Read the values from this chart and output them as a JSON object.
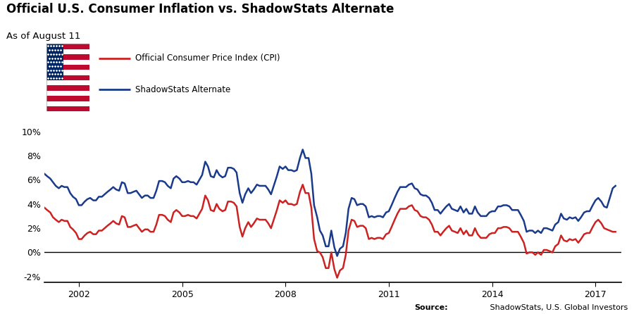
{
  "title": "Official U.S. Consumer Inflation vs. ShadowStats Alternate",
  "subtitle": "As of August 11",
  "source_label": "Source:",
  "source_text": " ShadowStats, U.S. Global Investors",
  "cpi_label": "Official Consumer Price Index (CPI)",
  "shadow_label": "ShadowStats Alternate",
  "cpi_color": "#cc2222",
  "shadow_color": "#1a3a8c",
  "line_width": 1.8,
  "ylim": [
    -2.5,
    11
  ],
  "yticks": [
    -2,
    0,
    2,
    4,
    6,
    8,
    10
  ],
  "xlim": [
    2001.0,
    2017.75
  ],
  "xticks": [
    2002,
    2005,
    2008,
    2011,
    2014,
    2017
  ],
  "background_color": "#ffffff",
  "cpi_data": {
    "dates": [
      2001.0,
      2001.08,
      2001.17,
      2001.25,
      2001.33,
      2001.42,
      2001.5,
      2001.58,
      2001.67,
      2001.75,
      2001.83,
      2001.92,
      2002.0,
      2002.08,
      2002.17,
      2002.25,
      2002.33,
      2002.42,
      2002.5,
      2002.58,
      2002.67,
      2002.75,
      2002.83,
      2002.92,
      2003.0,
      2003.08,
      2003.17,
      2003.25,
      2003.33,
      2003.42,
      2003.5,
      2003.58,
      2003.67,
      2003.75,
      2003.83,
      2003.92,
      2004.0,
      2004.08,
      2004.17,
      2004.25,
      2004.33,
      2004.42,
      2004.5,
      2004.58,
      2004.67,
      2004.75,
      2004.83,
      2004.92,
      2005.0,
      2005.08,
      2005.17,
      2005.25,
      2005.33,
      2005.42,
      2005.5,
      2005.58,
      2005.67,
      2005.75,
      2005.83,
      2005.92,
      2006.0,
      2006.08,
      2006.17,
      2006.25,
      2006.33,
      2006.42,
      2006.5,
      2006.58,
      2006.67,
      2006.75,
      2006.83,
      2006.92,
      2007.0,
      2007.08,
      2007.17,
      2007.25,
      2007.33,
      2007.42,
      2007.5,
      2007.58,
      2007.67,
      2007.75,
      2007.83,
      2007.92,
      2008.0,
      2008.08,
      2008.17,
      2008.25,
      2008.33,
      2008.42,
      2008.5,
      2008.58,
      2008.67,
      2008.75,
      2008.83,
      2008.92,
      2009.0,
      2009.08,
      2009.17,
      2009.25,
      2009.33,
      2009.42,
      2009.5,
      2009.58,
      2009.67,
      2009.75,
      2009.83,
      2009.92,
      2010.0,
      2010.08,
      2010.17,
      2010.25,
      2010.33,
      2010.42,
      2010.5,
      2010.58,
      2010.67,
      2010.75,
      2010.83,
      2010.92,
      2011.0,
      2011.08,
      2011.17,
      2011.25,
      2011.33,
      2011.42,
      2011.5,
      2011.58,
      2011.67,
      2011.75,
      2011.83,
      2011.92,
      2012.0,
      2012.08,
      2012.17,
      2012.25,
      2012.33,
      2012.42,
      2012.5,
      2012.58,
      2012.67,
      2012.75,
      2012.83,
      2012.92,
      2013.0,
      2013.08,
      2013.17,
      2013.25,
      2013.33,
      2013.42,
      2013.5,
      2013.58,
      2013.67,
      2013.75,
      2013.83,
      2013.92,
      2014.0,
      2014.08,
      2014.17,
      2014.25,
      2014.33,
      2014.42,
      2014.5,
      2014.58,
      2014.67,
      2014.75,
      2014.83,
      2014.92,
      2015.0,
      2015.08,
      2015.17,
      2015.25,
      2015.33,
      2015.42,
      2015.5,
      2015.58,
      2015.67,
      2015.75,
      2015.83,
      2015.92,
      2016.0,
      2016.08,
      2016.17,
      2016.25,
      2016.33,
      2016.42,
      2016.5,
      2016.58,
      2016.67,
      2016.75,
      2016.83,
      2016.92,
      2017.0,
      2017.08,
      2017.17,
      2017.25,
      2017.33,
      2017.5,
      2017.58
    ],
    "values": [
      3.7,
      3.5,
      3.3,
      2.9,
      2.7,
      2.5,
      2.7,
      2.6,
      2.6,
      2.1,
      1.9,
      1.6,
      1.1,
      1.1,
      1.4,
      1.6,
      1.7,
      1.5,
      1.5,
      1.8,
      1.8,
      2.0,
      2.2,
      2.4,
      2.6,
      2.4,
      2.3,
      3.0,
      2.9,
      2.1,
      2.1,
      2.2,
      2.3,
      2.0,
      1.7,
      1.9,
      1.9,
      1.7,
      1.7,
      2.3,
      3.1,
      3.1,
      3.0,
      2.7,
      2.5,
      3.3,
      3.5,
      3.3,
      3.0,
      3.0,
      3.1,
      3.0,
      3.0,
      2.8,
      3.2,
      3.6,
      4.7,
      4.3,
      3.5,
      3.4,
      4.0,
      3.6,
      3.4,
      3.5,
      4.2,
      4.2,
      4.1,
      3.8,
      2.1,
      1.3,
      2.0,
      2.5,
      2.1,
      2.4,
      2.8,
      2.7,
      2.7,
      2.7,
      2.4,
      2.0,
      2.8,
      3.5,
      4.3,
      4.1,
      4.3,
      4.0,
      4.0,
      3.9,
      4.0,
      5.0,
      5.6,
      4.9,
      4.9,
      3.7,
      1.1,
      0.1,
      0.0,
      -0.4,
      -1.3,
      -1.3,
      0.0,
      -1.4,
      -2.1,
      -1.5,
      -1.3,
      -0.2,
      1.8,
      2.7,
      2.6,
      2.1,
      2.2,
      2.2,
      2.0,
      1.1,
      1.2,
      1.1,
      1.2,
      1.2,
      1.1,
      1.5,
      1.6,
      2.1,
      2.7,
      3.2,
      3.6,
      3.6,
      3.6,
      3.8,
      3.9,
      3.5,
      3.4,
      3.0,
      2.9,
      2.9,
      2.7,
      2.3,
      1.7,
      1.7,
      1.4,
      1.7,
      2.0,
      2.2,
      1.8,
      1.7,
      1.6,
      2.0,
      1.5,
      1.8,
      1.4,
      1.4,
      2.0,
      1.5,
      1.2,
      1.2,
      1.2,
      1.5,
      1.6,
      1.6,
      2.0,
      2.0,
      2.1,
      2.1,
      2.0,
      1.7,
      1.7,
      1.7,
      1.3,
      0.8,
      -0.1,
      0.0,
      0.0,
      -0.2,
      0.0,
      -0.2,
      0.2,
      0.2,
      0.1,
      0.0,
      0.5,
      0.7,
      1.4,
      1.0,
      0.9,
      1.1,
      1.0,
      1.1,
      0.8,
      1.1,
      1.5,
      1.6,
      1.6,
      2.1,
      2.5,
      2.7,
      2.4,
      2.0,
      1.9,
      1.7,
      1.7
    ]
  },
  "shadow_data": {
    "dates": [
      2001.0,
      2001.08,
      2001.17,
      2001.25,
      2001.33,
      2001.42,
      2001.5,
      2001.58,
      2001.67,
      2001.75,
      2001.83,
      2001.92,
      2002.0,
      2002.08,
      2002.17,
      2002.25,
      2002.33,
      2002.42,
      2002.5,
      2002.58,
      2002.67,
      2002.75,
      2002.83,
      2002.92,
      2003.0,
      2003.08,
      2003.17,
      2003.25,
      2003.33,
      2003.42,
      2003.5,
      2003.58,
      2003.67,
      2003.75,
      2003.83,
      2003.92,
      2004.0,
      2004.08,
      2004.17,
      2004.25,
      2004.33,
      2004.42,
      2004.5,
      2004.58,
      2004.67,
      2004.75,
      2004.83,
      2004.92,
      2005.0,
      2005.08,
      2005.17,
      2005.25,
      2005.33,
      2005.42,
      2005.5,
      2005.58,
      2005.67,
      2005.75,
      2005.83,
      2005.92,
      2006.0,
      2006.08,
      2006.17,
      2006.25,
      2006.33,
      2006.42,
      2006.5,
      2006.58,
      2006.67,
      2006.75,
      2006.83,
      2006.92,
      2007.0,
      2007.08,
      2007.17,
      2007.25,
      2007.33,
      2007.42,
      2007.5,
      2007.58,
      2007.67,
      2007.75,
      2007.83,
      2007.92,
      2008.0,
      2008.08,
      2008.17,
      2008.25,
      2008.33,
      2008.42,
      2008.5,
      2008.58,
      2008.67,
      2008.75,
      2008.83,
      2008.92,
      2009.0,
      2009.08,
      2009.17,
      2009.25,
      2009.33,
      2009.42,
      2009.5,
      2009.58,
      2009.67,
      2009.75,
      2009.83,
      2009.92,
      2010.0,
      2010.08,
      2010.17,
      2010.25,
      2010.33,
      2010.42,
      2010.5,
      2010.58,
      2010.67,
      2010.75,
      2010.83,
      2010.92,
      2011.0,
      2011.08,
      2011.17,
      2011.25,
      2011.33,
      2011.42,
      2011.5,
      2011.58,
      2011.67,
      2011.75,
      2011.83,
      2011.92,
      2012.0,
      2012.08,
      2012.17,
      2012.25,
      2012.33,
      2012.42,
      2012.5,
      2012.58,
      2012.67,
      2012.75,
      2012.83,
      2012.92,
      2013.0,
      2013.08,
      2013.17,
      2013.25,
      2013.33,
      2013.42,
      2013.5,
      2013.58,
      2013.67,
      2013.75,
      2013.83,
      2013.92,
      2014.0,
      2014.08,
      2014.17,
      2014.25,
      2014.33,
      2014.42,
      2014.5,
      2014.58,
      2014.67,
      2014.75,
      2014.83,
      2014.92,
      2015.0,
      2015.08,
      2015.17,
      2015.25,
      2015.33,
      2015.42,
      2015.5,
      2015.58,
      2015.67,
      2015.75,
      2015.83,
      2015.92,
      2016.0,
      2016.08,
      2016.17,
      2016.25,
      2016.33,
      2016.42,
      2016.5,
      2016.58,
      2016.67,
      2016.75,
      2016.83,
      2016.92,
      2017.0,
      2017.08,
      2017.17,
      2017.25,
      2017.33,
      2017.5,
      2017.58
    ],
    "values": [
      6.5,
      6.3,
      6.1,
      5.8,
      5.5,
      5.3,
      5.5,
      5.4,
      5.4,
      4.9,
      4.6,
      4.4,
      3.9,
      3.9,
      4.2,
      4.4,
      4.5,
      4.3,
      4.3,
      4.6,
      4.6,
      4.8,
      5.0,
      5.2,
      5.4,
      5.2,
      5.1,
      5.8,
      5.7,
      4.9,
      4.9,
      5.0,
      5.1,
      4.8,
      4.5,
      4.7,
      4.7,
      4.5,
      4.5,
      5.1,
      5.9,
      5.9,
      5.8,
      5.5,
      5.3,
      6.1,
      6.3,
      6.1,
      5.8,
      5.8,
      5.9,
      5.8,
      5.8,
      5.6,
      6.0,
      6.4,
      7.5,
      7.1,
      6.3,
      6.2,
      6.8,
      6.4,
      6.2,
      6.3,
      7.0,
      7.0,
      6.9,
      6.6,
      4.9,
      4.1,
      4.8,
      5.3,
      4.9,
      5.2,
      5.6,
      5.5,
      5.5,
      5.5,
      5.2,
      4.8,
      5.6,
      6.3,
      7.1,
      6.9,
      7.1,
      6.8,
      6.8,
      6.7,
      6.8,
      7.8,
      8.5,
      7.8,
      7.8,
      6.5,
      3.9,
      2.9,
      1.8,
      1.4,
      0.5,
      0.5,
      1.8,
      0.4,
      -0.3,
      0.3,
      0.5,
      1.6,
      3.6,
      4.5,
      4.4,
      3.9,
      4.0,
      4.0,
      3.8,
      2.9,
      3.0,
      2.9,
      3.0,
      3.0,
      2.9,
      3.3,
      3.4,
      3.9,
      4.5,
      5.0,
      5.4,
      5.4,
      5.4,
      5.6,
      5.7,
      5.3,
      5.2,
      4.8,
      4.7,
      4.7,
      4.5,
      4.1,
      3.5,
      3.5,
      3.2,
      3.5,
      3.8,
      4.0,
      3.6,
      3.5,
      3.4,
      3.8,
      3.3,
      3.6,
      3.2,
      3.2,
      3.8,
      3.3,
      3.0,
      3.0,
      3.0,
      3.3,
      3.4,
      3.4,
      3.8,
      3.8,
      3.9,
      3.9,
      3.8,
      3.5,
      3.5,
      3.5,
      3.1,
      2.6,
      1.7,
      1.8,
      1.8,
      1.6,
      1.8,
      1.6,
      2.0,
      2.0,
      1.9,
      1.8,
      2.3,
      2.5,
      3.2,
      2.8,
      2.7,
      2.9,
      2.8,
      2.9,
      2.6,
      2.9,
      3.3,
      3.4,
      3.4,
      3.9,
      4.3,
      4.5,
      4.2,
      3.8,
      3.7,
      5.3,
      5.5
    ]
  }
}
